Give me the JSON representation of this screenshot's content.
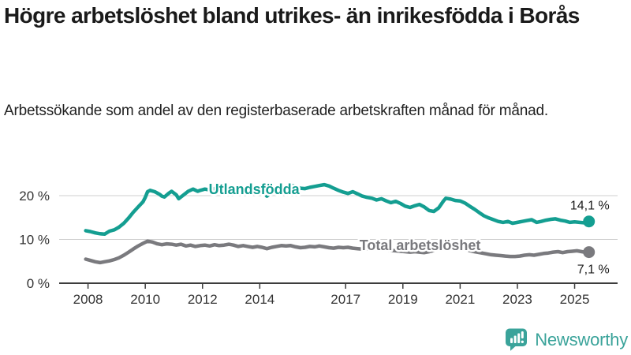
{
  "header": {
    "title": "Högre arbetslöshet bland utrikes- än inrikesfödda i Borås",
    "subtitle": "Arbetssökande som andel av den registerbaserade arbetskraften månad för månad."
  },
  "colors": {
    "accent_teal": "#149e91",
    "series_gray": "#7a7a7e",
    "brand_teal": "#3aa39a",
    "grid": "#cfcfcf",
    "axis": "#3d3d3d",
    "axis_label": "#333333",
    "text_dark": "#1a1a1a",
    "text_body": "#222222"
  },
  "chart_data": {
    "type": "line",
    "unit": "%",
    "grid": "horizontal",
    "legend_position": "inline-labels",
    "x_range": [
      2007.9,
      2025.6
    ],
    "y_range": [
      0,
      25
    ],
    "x_ticks": [
      2008,
      2010,
      2012,
      2014,
      2017,
      2019,
      2021,
      2023,
      2025
    ],
    "y_ticks": [
      {
        "value": 0,
        "label": "0 %"
      },
      {
        "value": 10,
        "label": "10 %"
      },
      {
        "value": 20,
        "label": "20 %"
      }
    ],
    "series": [
      {
        "name": "Utlandsfödda",
        "color": "#149e91",
        "end_value": 14.1,
        "end_label": "14,1 %",
        "end_label_side": "above",
        "label_at": [
          2013.8,
          20.4
        ],
        "points": [
          [
            2007.92,
            12.0
          ],
          [
            2008.08,
            11.8
          ],
          [
            2008.25,
            11.5
          ],
          [
            2008.42,
            11.3
          ],
          [
            2008.58,
            11.2
          ],
          [
            2008.75,
            11.9
          ],
          [
            2008.92,
            12.2
          ],
          [
            2009.08,
            12.8
          ],
          [
            2009.25,
            13.7
          ],
          [
            2009.42,
            14.9
          ],
          [
            2009.58,
            16.2
          ],
          [
            2009.75,
            17.4
          ],
          [
            2009.92,
            18.6
          ],
          [
            2010.0,
            19.6
          ],
          [
            2010.08,
            20.9
          ],
          [
            2010.17,
            21.2
          ],
          [
            2010.33,
            20.9
          ],
          [
            2010.5,
            20.3
          ],
          [
            2010.58,
            19.9
          ],
          [
            2010.67,
            19.7
          ],
          [
            2010.83,
            20.6
          ],
          [
            2010.92,
            21.0
          ],
          [
            2011.08,
            20.2
          ],
          [
            2011.17,
            19.3
          ],
          [
            2011.33,
            20.1
          ],
          [
            2011.5,
            21.0
          ],
          [
            2011.67,
            21.5
          ],
          [
            2011.83,
            21.0
          ],
          [
            2011.92,
            21.2
          ],
          [
            2012.08,
            21.5
          ],
          [
            2012.25,
            21.3
          ],
          [
            2012.42,
            21.6
          ],
          [
            2012.58,
            21.4
          ],
          [
            2012.75,
            21.6
          ],
          [
            2012.92,
            21.5
          ],
          [
            2013.08,
            21.6
          ],
          [
            2013.25,
            21.3
          ],
          [
            2013.42,
            21.5
          ],
          [
            2013.58,
            21.4
          ],
          [
            2013.75,
            21.2
          ],
          [
            2013.92,
            21.5
          ],
          [
            2014.08,
            21.3
          ],
          [
            2014.25,
            19.9
          ],
          [
            2014.42,
            20.8
          ],
          [
            2014.58,
            21.5
          ],
          [
            2014.75,
            21.9
          ],
          [
            2014.92,
            22.1
          ],
          [
            2015.08,
            22.4
          ],
          [
            2015.25,
            22.1
          ],
          [
            2015.42,
            21.7
          ],
          [
            2015.58,
            21.6
          ],
          [
            2015.75,
            21.9
          ],
          [
            2015.92,
            22.1
          ],
          [
            2016.08,
            22.3
          ],
          [
            2016.25,
            22.5
          ],
          [
            2016.42,
            22.2
          ],
          [
            2016.58,
            21.7
          ],
          [
            2016.75,
            21.2
          ],
          [
            2016.92,
            20.8
          ],
          [
            2017.08,
            20.5
          ],
          [
            2017.25,
            20.9
          ],
          [
            2017.42,
            20.4
          ],
          [
            2017.58,
            19.9
          ],
          [
            2017.75,
            19.6
          ],
          [
            2017.92,
            19.4
          ],
          [
            2018.08,
            19.0
          ],
          [
            2018.25,
            19.3
          ],
          [
            2018.42,
            18.8
          ],
          [
            2018.58,
            18.4
          ],
          [
            2018.75,
            18.7
          ],
          [
            2018.92,
            18.2
          ],
          [
            2019.08,
            17.6
          ],
          [
            2019.25,
            17.3
          ],
          [
            2019.42,
            17.7
          ],
          [
            2019.58,
            18.0
          ],
          [
            2019.75,
            17.4
          ],
          [
            2019.92,
            16.6
          ],
          [
            2020.08,
            16.4
          ],
          [
            2020.25,
            17.2
          ],
          [
            2020.42,
            18.8
          ],
          [
            2020.5,
            19.4
          ],
          [
            2020.67,
            19.2
          ],
          [
            2020.83,
            18.9
          ],
          [
            2021.0,
            18.8
          ],
          [
            2021.17,
            18.3
          ],
          [
            2021.33,
            17.6
          ],
          [
            2021.5,
            16.9
          ],
          [
            2021.67,
            16.1
          ],
          [
            2021.83,
            15.4
          ],
          [
            2022.0,
            14.9
          ],
          [
            2022.17,
            14.5
          ],
          [
            2022.33,
            14.1
          ],
          [
            2022.5,
            13.9
          ],
          [
            2022.67,
            14.1
          ],
          [
            2022.83,
            13.7
          ],
          [
            2023.0,
            13.9
          ],
          [
            2023.17,
            14.1
          ],
          [
            2023.33,
            14.3
          ],
          [
            2023.5,
            14.5
          ],
          [
            2023.67,
            13.9
          ],
          [
            2023.83,
            14.1
          ],
          [
            2024.0,
            14.4
          ],
          [
            2024.17,
            14.6
          ],
          [
            2024.33,
            14.7
          ],
          [
            2024.5,
            14.4
          ],
          [
            2024.67,
            14.2
          ],
          [
            2024.83,
            13.9
          ],
          [
            2025.0,
            14.0
          ],
          [
            2025.17,
            13.9
          ],
          [
            2025.33,
            13.8
          ],
          [
            2025.5,
            14.1
          ]
        ]
      },
      {
        "name": "Total arbetslöshet",
        "color": "#7a7a7e",
        "end_value": 7.1,
        "end_label": "7,1 %",
        "end_label_side": "below",
        "label_at": [
          2019.6,
          7.55
        ],
        "points": [
          [
            2007.92,
            5.5
          ],
          [
            2008.08,
            5.2
          ],
          [
            2008.25,
            4.9
          ],
          [
            2008.42,
            4.7
          ],
          [
            2008.58,
            4.9
          ],
          [
            2008.75,
            5.1
          ],
          [
            2008.92,
            5.4
          ],
          [
            2009.08,
            5.8
          ],
          [
            2009.25,
            6.4
          ],
          [
            2009.42,
            7.1
          ],
          [
            2009.58,
            7.8
          ],
          [
            2009.75,
            8.5
          ],
          [
            2009.92,
            9.1
          ],
          [
            2010.08,
            9.6
          ],
          [
            2010.25,
            9.4
          ],
          [
            2010.42,
            9.0
          ],
          [
            2010.58,
            8.8
          ],
          [
            2010.75,
            9.0
          ],
          [
            2010.92,
            8.9
          ],
          [
            2011.08,
            8.7
          ],
          [
            2011.25,
            8.9
          ],
          [
            2011.42,
            8.5
          ],
          [
            2011.58,
            8.7
          ],
          [
            2011.75,
            8.4
          ],
          [
            2011.92,
            8.6
          ],
          [
            2012.08,
            8.7
          ],
          [
            2012.25,
            8.5
          ],
          [
            2012.42,
            8.8
          ],
          [
            2012.58,
            8.6
          ],
          [
            2012.75,
            8.7
          ],
          [
            2012.92,
            8.9
          ],
          [
            2013.08,
            8.7
          ],
          [
            2013.25,
            8.4
          ],
          [
            2013.42,
            8.6
          ],
          [
            2013.58,
            8.4
          ],
          [
            2013.75,
            8.2
          ],
          [
            2013.92,
            8.4
          ],
          [
            2014.08,
            8.2
          ],
          [
            2014.25,
            7.9
          ],
          [
            2014.42,
            8.2
          ],
          [
            2014.58,
            8.4
          ],
          [
            2014.75,
            8.6
          ],
          [
            2014.92,
            8.5
          ],
          [
            2015.08,
            8.6
          ],
          [
            2015.25,
            8.3
          ],
          [
            2015.42,
            8.1
          ],
          [
            2015.58,
            8.2
          ],
          [
            2015.75,
            8.4
          ],
          [
            2015.92,
            8.3
          ],
          [
            2016.08,
            8.5
          ],
          [
            2016.25,
            8.3
          ],
          [
            2016.42,
            8.1
          ],
          [
            2016.58,
            8.0
          ],
          [
            2016.75,
            8.2
          ],
          [
            2016.92,
            8.1
          ],
          [
            2017.08,
            8.2
          ],
          [
            2017.25,
            8.0
          ],
          [
            2017.42,
            7.9
          ],
          [
            2017.58,
            7.8
          ],
          [
            2017.75,
            7.9
          ],
          [
            2017.92,
            8.0
          ],
          [
            2018.08,
            7.9
          ],
          [
            2018.25,
            7.7
          ],
          [
            2018.42,
            7.6
          ],
          [
            2018.58,
            7.5
          ],
          [
            2018.75,
            7.4
          ],
          [
            2018.92,
            7.3
          ],
          [
            2019.08,
            7.2
          ],
          [
            2019.25,
            7.1
          ],
          [
            2019.42,
            7.2
          ],
          [
            2019.58,
            7.1
          ],
          [
            2019.75,
            7.0
          ],
          [
            2019.92,
            7.2
          ],
          [
            2020.08,
            7.5
          ],
          [
            2020.25,
            8.0
          ],
          [
            2020.42,
            8.4
          ],
          [
            2020.58,
            8.5
          ],
          [
            2020.75,
            8.4
          ],
          [
            2020.92,
            8.2
          ],
          [
            2021.08,
            7.9
          ],
          [
            2021.25,
            7.6
          ],
          [
            2021.42,
            7.3
          ],
          [
            2021.58,
            7.1
          ],
          [
            2021.75,
            6.9
          ],
          [
            2021.92,
            6.7
          ],
          [
            2022.08,
            6.5
          ],
          [
            2022.25,
            6.4
          ],
          [
            2022.42,
            6.3
          ],
          [
            2022.58,
            6.2
          ],
          [
            2022.75,
            6.1
          ],
          [
            2022.92,
            6.1
          ],
          [
            2023.08,
            6.2
          ],
          [
            2023.25,
            6.4
          ],
          [
            2023.42,
            6.5
          ],
          [
            2023.58,
            6.4
          ],
          [
            2023.75,
            6.6
          ],
          [
            2023.92,
            6.8
          ],
          [
            2024.08,
            6.9
          ],
          [
            2024.25,
            7.1
          ],
          [
            2024.42,
            7.2
          ],
          [
            2024.58,
            7.0
          ],
          [
            2024.75,
            7.2
          ],
          [
            2024.92,
            7.3
          ],
          [
            2025.08,
            7.4
          ],
          [
            2025.25,
            7.2
          ],
          [
            2025.42,
            7.0
          ],
          [
            2025.5,
            7.1
          ]
        ]
      }
    ]
  },
  "footer": {
    "brand": "Newsworthy"
  }
}
